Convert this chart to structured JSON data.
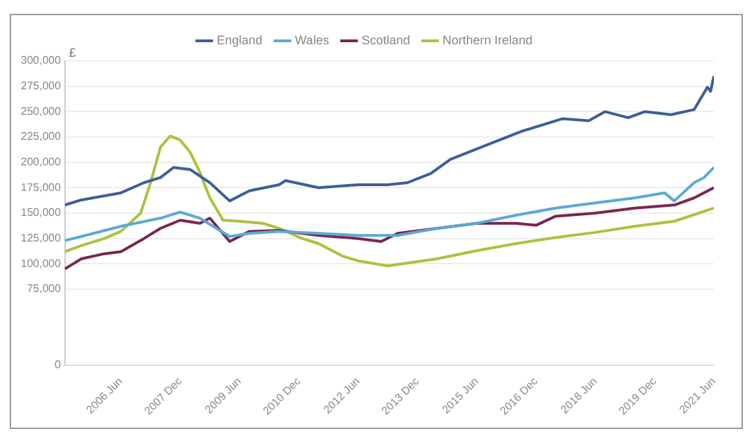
{
  "chart_data": {
    "type": "line",
    "ylabel": "£",
    "legend": "top",
    "grid": "y",
    "marker": "none",
    "line_style": "solid",
    "xlim": [
      "2005-01",
      "2021-06"
    ],
    "xticks": [
      {
        "value": "2006-06",
        "label": "2006 Jun"
      },
      {
        "value": "2007-12",
        "label": "2007 Dec"
      },
      {
        "value": "2009-06",
        "label": "2009 Jun"
      },
      {
        "value": "2010-12",
        "label": "2010 Dec"
      },
      {
        "value": "2012-06",
        "label": "2012 Jun"
      },
      {
        "value": "2013-12",
        "label": "2013 Dec"
      },
      {
        "value": "2015-06",
        "label": "2015 Jun"
      },
      {
        "value": "2016-12",
        "label": "2016 Dec"
      },
      {
        "value": "2018-06",
        "label": "2018 Jun"
      },
      {
        "value": "2019-12",
        "label": "2019 Dec"
      },
      {
        "value": "2021-06",
        "label": "2021 Jun"
      }
    ],
    "ylim": [
      0,
      300000
    ],
    "yticks": [
      0,
      {
        "value": 75000,
        "label": "75,000"
      },
      {
        "value": 100000,
        "label": "100,000"
      },
      {
        "value": 125000,
        "label": "125,000"
      },
      {
        "value": 150000,
        "label": "150,000"
      },
      {
        "value": 175000,
        "label": "175,000"
      },
      {
        "value": 200000,
        "label": "200,000"
      },
      {
        "value": 225000,
        "label": "225,000"
      },
      {
        "value": 250000,
        "label": "250,000"
      },
      {
        "value": 275000,
        "label": "275,000"
      },
      {
        "value": 300000,
        "label": "300,000"
      }
    ],
    "series": [
      {
        "name": "England",
        "color": "#3d5f9a",
        "x": [
          "2005-01",
          "2005-06",
          "2006-01",
          "2006-06",
          "2007-01",
          "2007-06",
          "2007-10",
          "2008-03",
          "2008-09",
          "2009-03",
          "2009-09",
          "2010-06",
          "2010-08",
          "2011-06",
          "2012-06",
          "2013-03",
          "2013-09",
          "2014-04",
          "2014-10",
          "2015-09",
          "2016-08",
          "2017-08",
          "2018-04",
          "2018-09",
          "2019-04",
          "2019-09",
          "2020-05",
          "2020-12",
          "2021-04",
          "2021-05",
          "2021-06"
        ],
        "values": [
          158000,
          163000,
          167000,
          170000,
          180000,
          185000,
          195000,
          193000,
          180000,
          162000,
          172000,
          178000,
          182000,
          175000,
          178000,
          178000,
          180000,
          189000,
          203000,
          217000,
          231000,
          243000,
          241000,
          250000,
          244000,
          250000,
          247000,
          252000,
          274000,
          270000,
          285000
        ]
      },
      {
        "name": "Wales",
        "color": "#5aaad6",
        "x": [
          "2005-01",
          "2005-06",
          "2006-06",
          "2007-06",
          "2007-12",
          "2008-06",
          "2009-03",
          "2009-09",
          "2010-06",
          "2011-06",
          "2012-06",
          "2013-06",
          "2014-06",
          "2015-06",
          "2016-06",
          "2017-06",
          "2018-06",
          "2019-06",
          "2020-03",
          "2020-06",
          "2020-12",
          "2021-03",
          "2021-06"
        ],
        "values": [
          123000,
          127000,
          137000,
          145000,
          151000,
          145000,
          127000,
          130000,
          132000,
          130000,
          128000,
          128000,
          135000,
          140000,
          148000,
          155000,
          160000,
          165000,
          170000,
          162000,
          180000,
          185000,
          195000
        ]
      },
      {
        "name": "Scotland",
        "color": "#7b2650",
        "x": [
          "2005-01",
          "2005-06",
          "2006-01",
          "2006-06",
          "2007-01",
          "2007-06",
          "2007-12",
          "2008-06",
          "2008-09",
          "2009-03",
          "2009-09",
          "2010-06",
          "2011-06",
          "2012-06",
          "2013-01",
          "2013-06",
          "2014-06",
          "2015-06",
          "2016-06",
          "2016-12",
          "2017-06",
          "2018-06",
          "2019-06",
          "2020-06",
          "2020-12",
          "2021-06"
        ],
        "values": [
          95000,
          105000,
          110000,
          112000,
          125000,
          135000,
          143000,
          140000,
          145000,
          122000,
          132000,
          133000,
          128000,
          125000,
          122000,
          130000,
          135000,
          140000,
          140000,
          138000,
          147000,
          150000,
          155000,
          158000,
          165000,
          175000
        ]
      },
      {
        "name": "Northern Ireland",
        "color": "#a8c43c",
        "x": [
          "2005-01",
          "2005-06",
          "2006-01",
          "2006-06",
          "2006-12",
          "2007-03",
          "2007-06",
          "2007-09",
          "2007-12",
          "2008-03",
          "2008-06",
          "2008-09",
          "2009-01",
          "2009-06",
          "2010-01",
          "2010-06",
          "2011-01",
          "2011-06",
          "2012-01",
          "2012-06",
          "2013-03",
          "2014-06",
          "2015-06",
          "2016-06",
          "2017-06",
          "2018-06",
          "2019-06",
          "2020-06",
          "2021-06"
        ],
        "values": [
          112000,
          118000,
          125000,
          132000,
          150000,
          180000,
          215000,
          226000,
          222000,
          210000,
          190000,
          165000,
          143000,
          142000,
          140000,
          135000,
          125000,
          120000,
          108000,
          103000,
          98000,
          105000,
          113000,
          120000,
          126000,
          131000,
          137000,
          142000,
          155000
        ]
      }
    ]
  }
}
